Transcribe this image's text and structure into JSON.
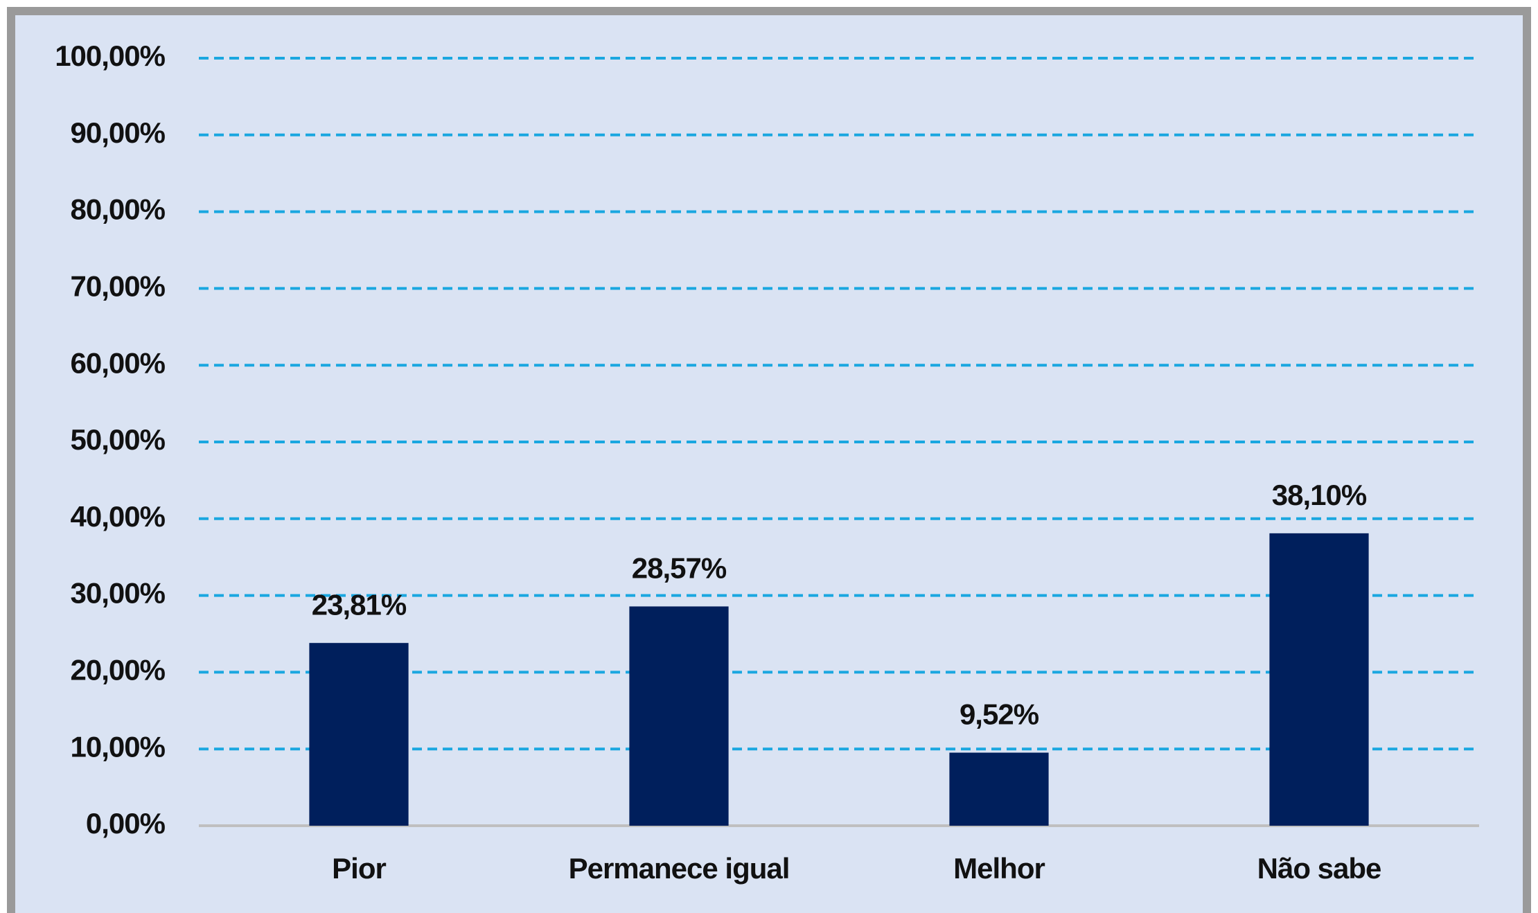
{
  "chart_data": {
    "type": "bar",
    "categories": [
      "Pior",
      "Permanece igual",
      "Melhor",
      "Não sabe"
    ],
    "values": [
      23.81,
      28.57,
      9.52,
      38.1
    ],
    "value_labels": [
      "23,81%",
      "28,57%",
      "9,52%",
      "38,10%"
    ],
    "color": "#001f5c",
    "ylim": [
      0,
      100
    ],
    "yticks": [
      {
        "value": 0,
        "label": "0,00%"
      },
      {
        "value": 10,
        "label": "10,00%"
      },
      {
        "value": 20,
        "label": "20,00%"
      },
      {
        "value": 30,
        "label": "30,00%"
      },
      {
        "value": 40,
        "label": "40,00%"
      },
      {
        "value": 50,
        "label": "50,00%"
      },
      {
        "value": 60,
        "label": "60,00%"
      },
      {
        "value": 70,
        "label": "70,00%"
      },
      {
        "value": 80,
        "label": "80,00%"
      },
      {
        "value": 90,
        "label": "90,00%"
      },
      {
        "value": 100,
        "label": "100,00%"
      }
    ],
    "grid": true
  }
}
